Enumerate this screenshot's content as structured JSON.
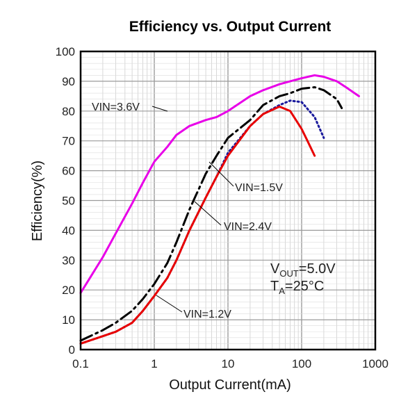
{
  "chart_data": {
    "type": "line",
    "title": "Efficiency vs. Output Current",
    "xlabel": "Output Current(mA)",
    "ylabel": "Efficiency(%)",
    "x_scale": "log",
    "xlim": [
      0.1,
      1000
    ],
    "ylim": [
      0,
      100
    ],
    "x_ticks": [
      "0.1",
      "1",
      "10",
      "100",
      "1000"
    ],
    "y_ticks": [
      "0",
      "10",
      "20",
      "30",
      "40",
      "50",
      "60",
      "70",
      "80",
      "90",
      "100"
    ],
    "grid": true,
    "series": [
      {
        "name": "VIN=3.6V",
        "color": "#e800e8",
        "style": "solid",
        "x": [
          0.1,
          0.2,
          0.3,
          0.5,
          0.7,
          1,
          1.5,
          2,
          3,
          5,
          7,
          10,
          20,
          30,
          50,
          70,
          100,
          150,
          200,
          300,
          400,
          600
        ],
        "y": [
          19,
          31,
          39,
          49,
          56,
          63,
          68,
          72,
          75,
          77,
          78,
          80,
          85,
          87,
          89,
          90,
          91,
          92,
          91.5,
          90,
          88,
          85
        ]
      },
      {
        "name": "",
        "color": "#000000",
        "style": "dashdot",
        "x": [
          0.1,
          0.2,
          0.3,
          0.5,
          0.7,
          1,
          1.5,
          2,
          3,
          5,
          7,
          10,
          20,
          30,
          50,
          70,
          100,
          150,
          200,
          300,
          350
        ],
        "y": [
          3,
          6.5,
          9,
          13,
          17,
          22,
          29,
          36,
          47,
          59,
          65,
          71,
          77,
          82,
          85,
          86,
          87.5,
          88,
          87,
          84,
          81
        ]
      },
      {
        "name": "VIN=1.5V",
        "color": "#1a1a9c",
        "style": "dotted",
        "x": [
          0.1,
          0.2,
          0.3,
          0.5,
          0.7,
          1,
          1.5,
          2,
          3,
          5,
          7,
          10,
          20,
          30,
          50,
          70,
          100,
          150,
          200
        ],
        "y": [
          2,
          4.5,
          6,
          9,
          13,
          18,
          24,
          30,
          40,
          51,
          58,
          66,
          75,
          79,
          82,
          83.5,
          83,
          78,
          71
        ]
      },
      {
        "name": "VIN=2.4V",
        "color": "#e80000",
        "style": "solid",
        "x": [
          0.1,
          0.2,
          0.3,
          0.5,
          0.7,
          1,
          1.5,
          2,
          3,
          5,
          7,
          10,
          20,
          30,
          50,
          70,
          100,
          120,
          150
        ],
        "y": [
          2,
          4.5,
          6,
          9,
          13,
          18,
          24,
          30,
          40,
          51,
          58,
          65,
          75,
          79,
          81.5,
          80,
          74,
          70,
          65
        ]
      }
    ],
    "series_label_VIN12": "VIN=1.2V",
    "conditions": {
      "vout_main": "V",
      "vout_sub": "OUT",
      "vout_value": "=5.0V",
      "ta_main": "T",
      "ta_sub": "A",
      "ta_value": "=25°C"
    }
  }
}
